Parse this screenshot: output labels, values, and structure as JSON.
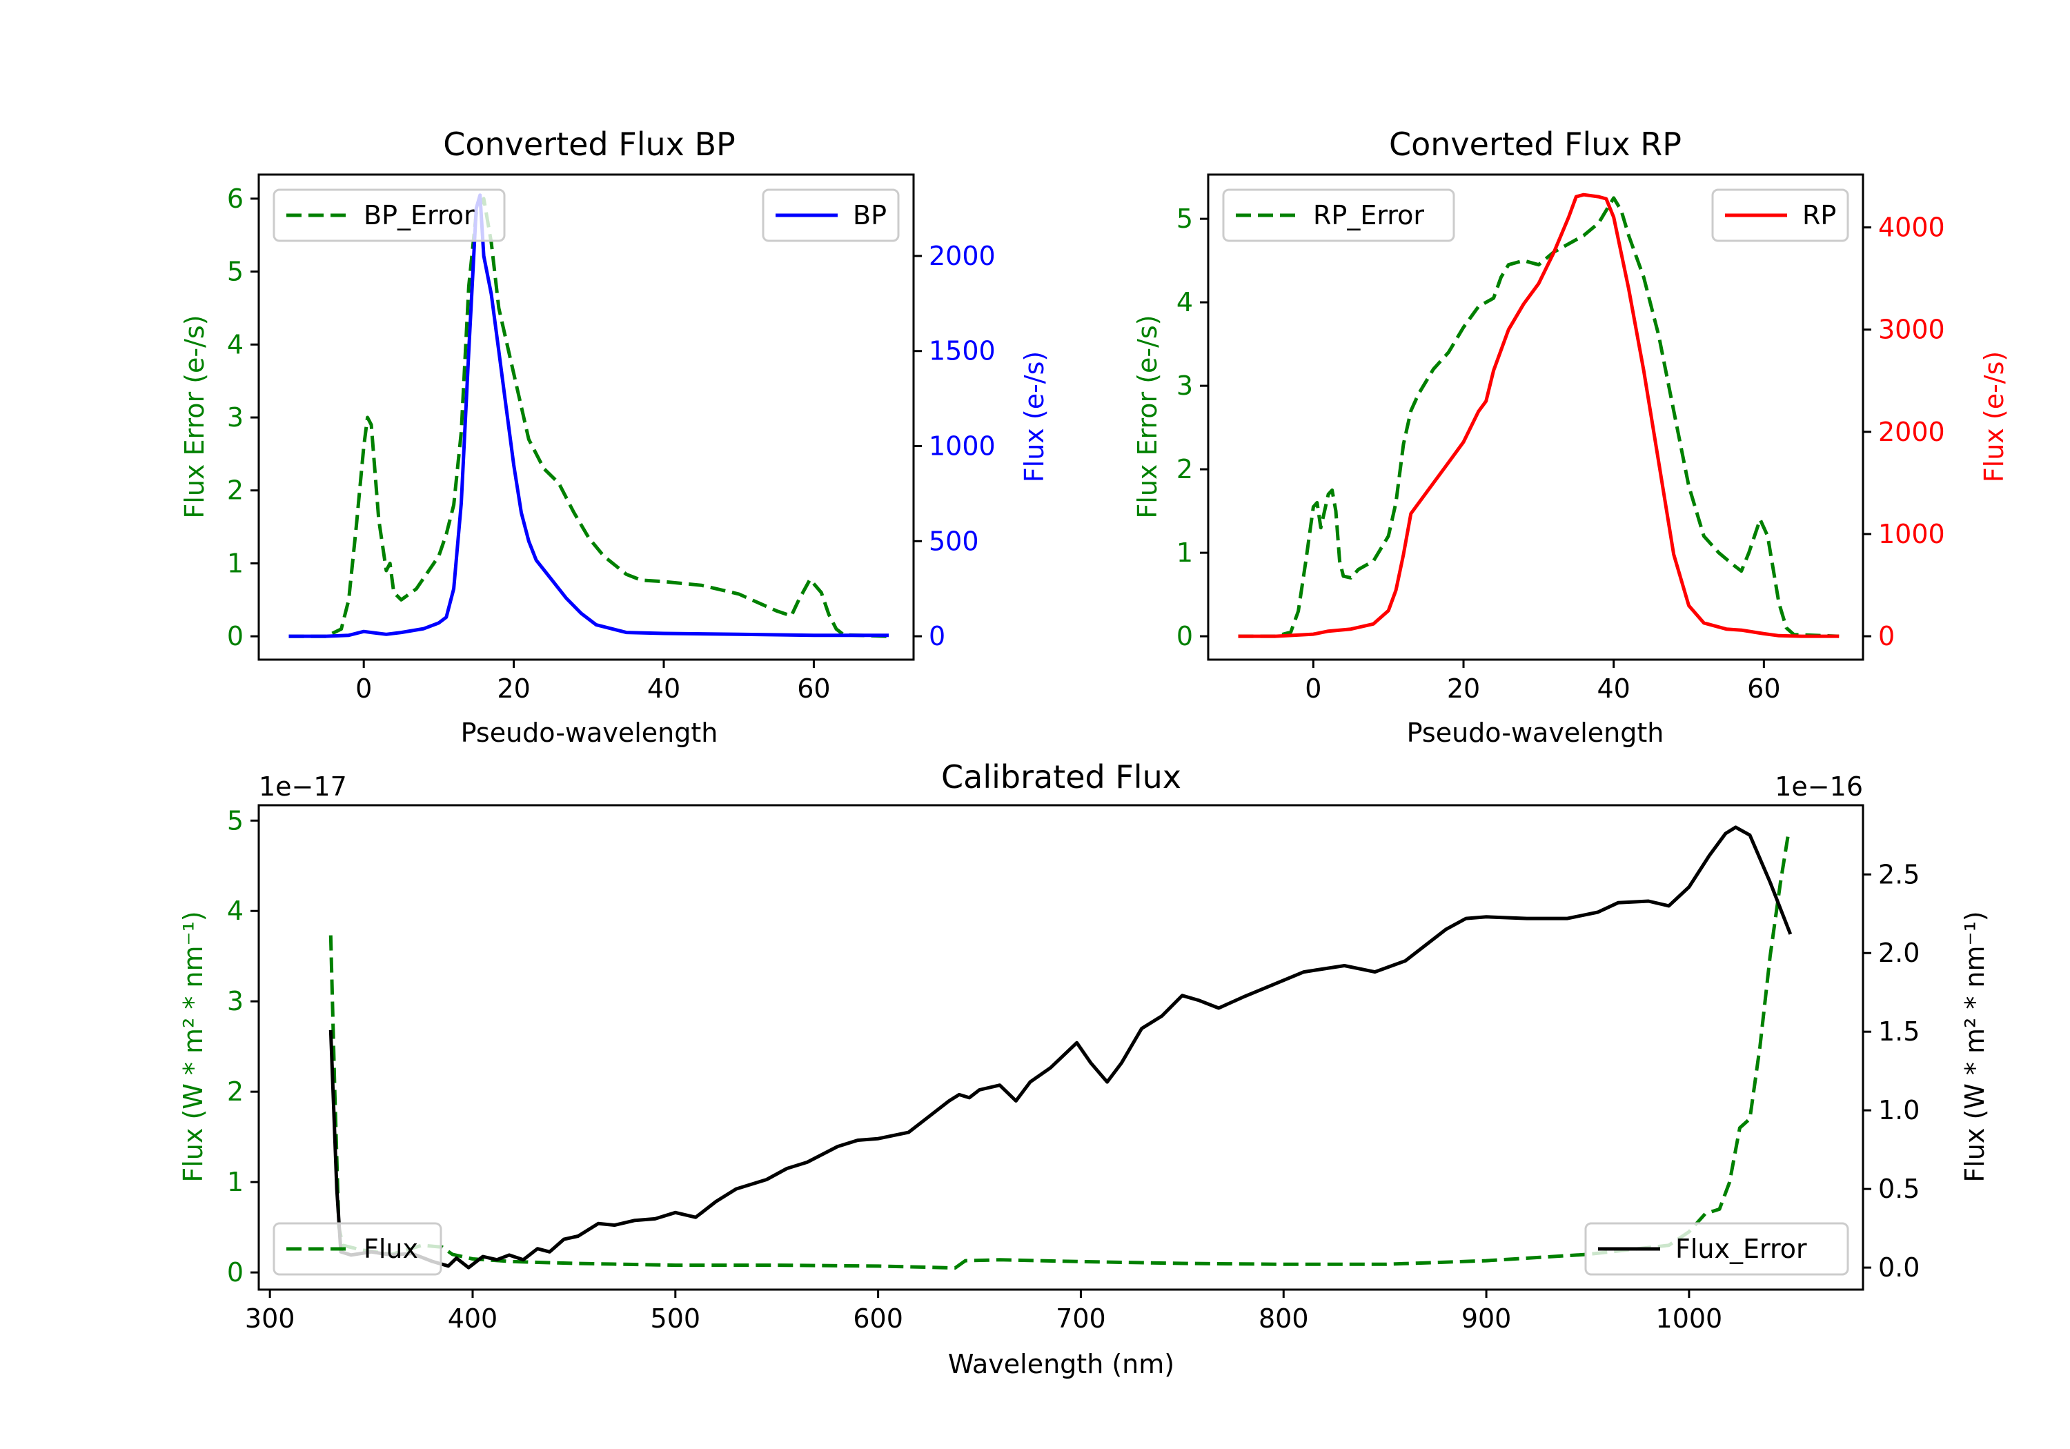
{
  "colors": {
    "error": "#008000",
    "bp": "#0000ff",
    "rp": "#ff0000",
    "flux": "#000000"
  },
  "chart_data": [
    {
      "type": "line",
      "title": "Converted Flux BP",
      "xlabel": "Pseudo-wavelength",
      "ylabel": "Flux Error (e-/s)",
      "ylabel_right": "Flux (e-/s)",
      "xlim": [
        -14,
        73.3
      ],
      "ylim": [
        -0.32,
        6.33
      ],
      "ylim_right": [
        -123,
        2428
      ],
      "xticks": [
        0,
        20,
        40,
        60
      ],
      "xtick_labels": [
        "0",
        "20",
        "40",
        "60"
      ],
      "yticks": [
        0,
        1,
        2,
        3,
        4,
        5,
        6
      ],
      "ytick_labels": [
        "0",
        "1",
        "2",
        "3",
        "4",
        "5",
        "6"
      ],
      "yticks_right": [
        0,
        500,
        1000,
        1500,
        2000
      ],
      "ytick_labels_right": [
        "0",
        "500",
        "1000",
        "1500",
        "2000"
      ],
      "grid": false,
      "legend_left": {
        "label": "BP_Error",
        "placement": "upper-left"
      },
      "legend_right": {
        "label": "BP",
        "placement": "upper-right"
      },
      "series": [
        {
          "name": "BP_Error",
          "axis": "left",
          "style": "dashed",
          "color": "#008000",
          "x": [
            -10,
            -5,
            -3,
            -2,
            -1,
            0,
            0.5,
            1,
            2,
            3,
            3.5,
            4,
            5,
            7,
            8,
            10,
            11,
            12,
            13,
            14,
            15,
            16,
            17,
            18,
            20,
            22,
            24,
            26,
            28,
            30,
            32,
            35,
            37,
            40,
            45,
            50,
            55,
            57,
            58,
            59.5,
            61,
            62,
            63,
            64,
            70
          ],
          "y": [
            0,
            0,
            0.1,
            0.5,
            1.5,
            2.6,
            3.0,
            2.9,
            1.6,
            0.9,
            1.0,
            0.6,
            0.5,
            0.65,
            0.8,
            1.1,
            1.4,
            1.8,
            2.8,
            4.8,
            5.8,
            6.0,
            5.4,
            4.5,
            3.6,
            2.7,
            2.3,
            2.1,
            1.7,
            1.35,
            1.1,
            0.85,
            0.77,
            0.75,
            0.7,
            0.58,
            0.35,
            0.28,
            0.5,
            0.78,
            0.6,
            0.3,
            0.1,
            0.02,
            0
          ]
        },
        {
          "name": "BP",
          "axis": "right",
          "style": "solid",
          "color": "#0000ff",
          "x": [
            -10,
            -5,
            -2,
            0,
            1,
            3,
            5,
            8,
            10,
            11,
            12,
            13,
            14,
            15,
            15.5,
            16,
            17,
            18,
            19,
            20,
            21,
            22,
            23,
            25,
            27,
            29,
            31,
            33,
            35,
            40,
            50,
            60,
            70
          ],
          "y": [
            0,
            0,
            5,
            25,
            20,
            10,
            20,
            40,
            70,
            100,
            250,
            700,
            1500,
            2250,
            2320,
            2000,
            1800,
            1500,
            1200,
            900,
            650,
            500,
            400,
            300,
            200,
            120,
            60,
            40,
            20,
            15,
            10,
            5,
            5
          ]
        }
      ]
    },
    {
      "type": "line",
      "title": "Converted Flux RP",
      "xlabel": "Pseudo-wavelength",
      "ylabel": "Flux Error (e-/s)",
      "ylabel_right": "Flux (e-/s)",
      "xlim": [
        -14,
        73.2
      ],
      "ylim": [
        -0.28,
        5.53
      ],
      "ylim_right": [
        -229,
        4517
      ],
      "xticks": [
        0,
        20,
        40,
        60
      ],
      "xtick_labels": [
        "0",
        "20",
        "40",
        "60"
      ],
      "yticks": [
        0,
        1,
        2,
        3,
        4,
        5
      ],
      "ytick_labels": [
        "0",
        "1",
        "2",
        "3",
        "4",
        "5"
      ],
      "yticks_right": [
        0,
        1000,
        2000,
        3000,
        4000
      ],
      "ytick_labels_right": [
        "0",
        "1000",
        "2000",
        "3000",
        "4000"
      ],
      "grid": false,
      "legend_left": {
        "label": "RP_Error",
        "placement": "upper-left"
      },
      "legend_right": {
        "label": "RP",
        "placement": "upper-right"
      },
      "series": [
        {
          "name": "RP_Error",
          "axis": "left",
          "style": "dashed",
          "color": "#008000",
          "x": [
            -10,
            -5,
            -3,
            -2,
            -1,
            0,
            0.5,
            1,
            2,
            2.5,
            3,
            3.5,
            4,
            5,
            6,
            8,
            10,
            11,
            12,
            13,
            14,
            16,
            18,
            20,
            22,
            24,
            25,
            26,
            28,
            30,
            32,
            34,
            36,
            38,
            39,
            40,
            41,
            42,
            44,
            46,
            48,
            50,
            52,
            54,
            56,
            57,
            58,
            59.5,
            60.5,
            62,
            63,
            64,
            70
          ],
          "y": [
            0,
            0,
            0.05,
            0.3,
            0.9,
            1.55,
            1.6,
            1.3,
            1.7,
            1.75,
            1.5,
            0.9,
            0.72,
            0.7,
            0.8,
            0.9,
            1.2,
            1.6,
            2.3,
            2.7,
            2.9,
            3.2,
            3.4,
            3.7,
            3.95,
            4.05,
            4.3,
            4.45,
            4.5,
            4.45,
            4.6,
            4.7,
            4.8,
            4.95,
            5.1,
            5.25,
            5.1,
            4.8,
            4.3,
            3.6,
            2.7,
            1.8,
            1.2,
            1.0,
            0.85,
            0.78,
            1.0,
            1.4,
            1.2,
            0.4,
            0.1,
            0.02,
            0
          ]
        },
        {
          "name": "RP",
          "axis": "right",
          "style": "solid",
          "color": "#ff0000",
          "x": [
            -10,
            -5,
            0,
            2,
            5,
            8,
            10,
            11,
            12,
            13,
            15,
            18,
            20,
            22,
            23,
            24,
            26,
            28,
            30,
            32,
            34,
            35,
            36,
            38,
            39,
            40,
            42,
            44,
            46,
            48,
            50,
            52,
            55,
            57,
            60,
            62,
            65,
            70
          ],
          "y": [
            0,
            0,
            20,
            50,
            70,
            120,
            250,
            450,
            800,
            1200,
            1400,
            1700,
            1900,
            2200,
            2300,
            2600,
            3000,
            3250,
            3450,
            3750,
            4100,
            4300,
            4320,
            4300,
            4280,
            4100,
            3400,
            2600,
            1700,
            800,
            300,
            130,
            70,
            60,
            25,
            5,
            0,
            0
          ]
        }
      ]
    },
    {
      "type": "line",
      "title": "Calibrated Flux",
      "xlabel": "Wavelength (nm)",
      "ylabel": "Flux (W * m² * nm⁻¹)",
      "ylabel_right": "Flux (W * m² * nm⁻¹)",
      "offset_left": "1e−17",
      "offset_right": "1e−16",
      "xlim": [
        294.5,
        1085.8
      ],
      "ylim": [
        -0.19,
        5.17
      ],
      "ylim_right": [
        -0.14,
        2.94
      ],
      "xticks": [
        300,
        400,
        500,
        600,
        700,
        800,
        900,
        1000
      ],
      "xtick_labels": [
        "300",
        "400",
        "500",
        "600",
        "700",
        "800",
        "900",
        "1000"
      ],
      "yticks": [
        0,
        1,
        2,
        3,
        4,
        5
      ],
      "ytick_labels": [
        "0",
        "1",
        "2",
        "3",
        "4",
        "5"
      ],
      "yticks_right": [
        0,
        0.5,
        1.0,
        1.5,
        2.0,
        2.5
      ],
      "ytick_labels_right": [
        "0.0",
        "0.5",
        "1.0",
        "1.5",
        "2.0",
        "2.5"
      ],
      "grid": false,
      "legend_left": {
        "label": "Flux",
        "placement": "lower-left"
      },
      "legend_right": {
        "label": "Flux_Error",
        "placement": "lower-right"
      },
      "series": [
        {
          "name": "Flux_Error",
          "axis": "left",
          "style": "dashed",
          "color": "#008000",
          "scale": "1e-17",
          "x": [
            330,
            332,
            334,
            336,
            345,
            360,
            375,
            385,
            390,
            400,
            420,
            450,
            500,
            550,
            600,
            638,
            643,
            660,
            700,
            750,
            800,
            850,
            900,
            950,
            990,
            1000,
            1008,
            1015,
            1020,
            1025,
            1030,
            1035,
            1040,
            1045,
            1049
          ],
          "y": [
            3.73,
            2.0,
            0.5,
            0.3,
            0.25,
            0.2,
            0.3,
            0.28,
            0.2,
            0.15,
            0.12,
            0.1,
            0.08,
            0.08,
            0.07,
            0.05,
            0.13,
            0.14,
            0.12,
            0.1,
            0.09,
            0.09,
            0.13,
            0.2,
            0.3,
            0.45,
            0.65,
            0.7,
            1.0,
            1.6,
            1.7,
            2.5,
            3.5,
            4.3,
            4.86
          ]
        },
        {
          "name": "Flux",
          "axis": "right",
          "style": "solid",
          "color": "#000000",
          "scale": "1e-16",
          "x": [
            330,
            333,
            335,
            340,
            350,
            360,
            370,
            380,
            388,
            392,
            398,
            405,
            412,
            418,
            425,
            432,
            438,
            445,
            452,
            462,
            470,
            480,
            490,
            500,
            510,
            520,
            530,
            545,
            555,
            565,
            580,
            590,
            600,
            615,
            625,
            635,
            640,
            645,
            650,
            660,
            668,
            675,
            685,
            698,
            705,
            713,
            720,
            730,
            740,
            750,
            758,
            768,
            780,
            795,
            810,
            830,
            845,
            860,
            880,
            890,
            900,
            920,
            940,
            955,
            965,
            980,
            990,
            1000,
            1010,
            1018,
            1023,
            1030,
            1040,
            1050
          ],
          "y": [
            1.51,
            0.5,
            0.1,
            0.08,
            0.1,
            0.08,
            0.09,
            0.04,
            0.01,
            0.06,
            0.0,
            0.07,
            0.05,
            0.08,
            0.05,
            0.12,
            0.1,
            0.18,
            0.2,
            0.28,
            0.27,
            0.3,
            0.31,
            0.35,
            0.32,
            0.42,
            0.5,
            0.56,
            0.63,
            0.67,
            0.77,
            0.81,
            0.82,
            0.86,
            0.96,
            1.06,
            1.1,
            1.08,
            1.13,
            1.16,
            1.06,
            1.18,
            1.27,
            1.43,
            1.3,
            1.18,
            1.3,
            1.52,
            1.6,
            1.73,
            1.7,
            1.65,
            1.72,
            1.8,
            1.88,
            1.92,
            1.88,
            1.95,
            2.15,
            2.22,
            2.23,
            2.22,
            2.22,
            2.26,
            2.32,
            2.33,
            2.3,
            2.42,
            2.62,
            2.76,
            2.8,
            2.75,
            2.45,
            2.12
          ]
        }
      ]
    }
  ]
}
